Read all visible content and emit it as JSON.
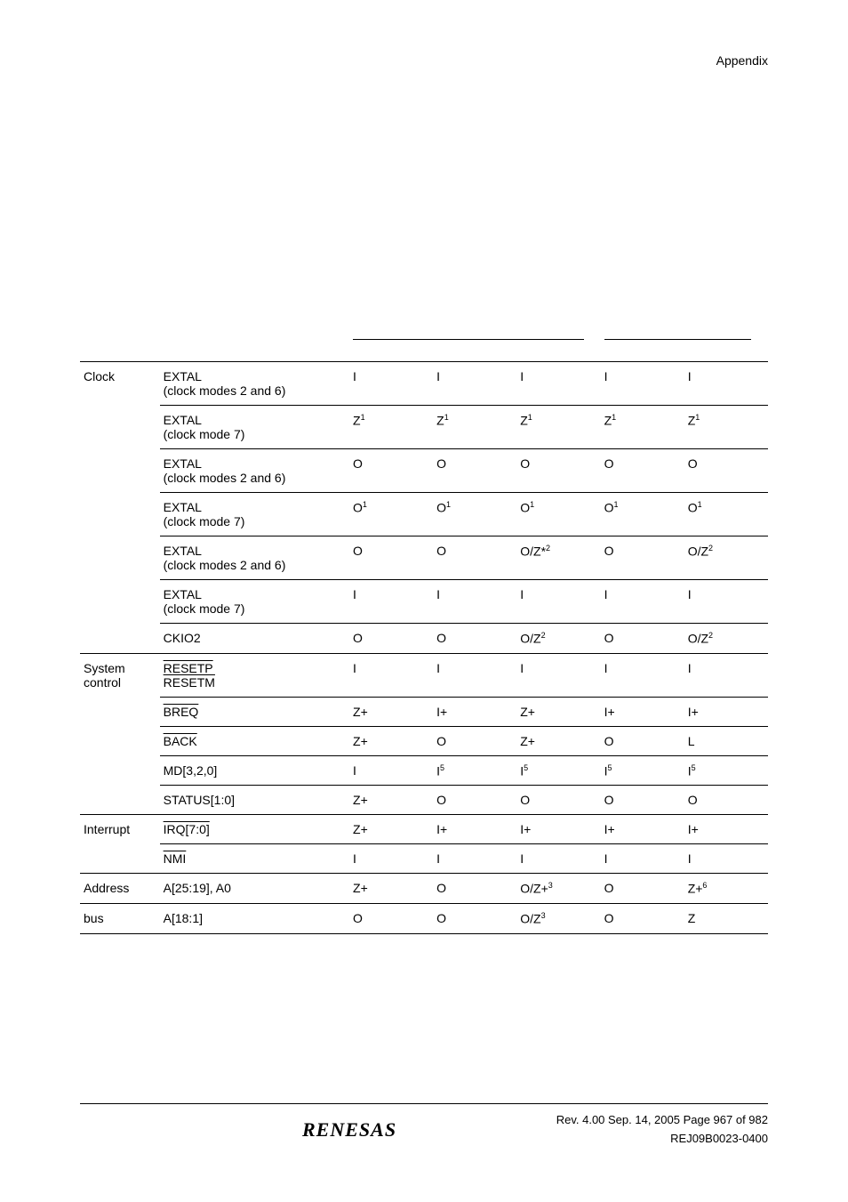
{
  "header": {
    "section": "Appendix"
  },
  "table": {
    "rows": [
      {
        "category": "Clock",
        "pin": "EXTAL",
        "sub": "(clock modes 2 and 6)",
        "c1": "I",
        "c2": "I",
        "c3": "I",
        "c4": "I",
        "c5": "I",
        "topBorder": true
      },
      {
        "category": "",
        "pin": "EXTAL",
        "sub": "(clock mode 7)",
        "c1": "Z",
        "s1": "1",
        "c2": "Z",
        "s2": "1",
        "c3": "Z",
        "s3": "1",
        "c4": "Z",
        "s4": "1",
        "c5": "Z",
        "s5": "1",
        "topBorder": true
      },
      {
        "category": "",
        "pin": "EXTAL",
        "sub": "(clock modes 2 and 6)",
        "c1": "O",
        "c2": "O",
        "c3": "O",
        "c4": "O",
        "c5": "O",
        "topBorder": true
      },
      {
        "category": "",
        "pin": "EXTAL",
        "sub": "(clock mode 7)",
        "c1": "O",
        "s1": "1",
        "c2": "O",
        "s2": "1",
        "c3": "O",
        "s3": "1",
        "c4": "O",
        "s4": "1",
        "c5": "O",
        "s5": "1",
        "topBorder": true
      },
      {
        "category": "",
        "pin": "EXTAL",
        "sub": "(clock modes 2 and 6)",
        "c1": "O",
        "c2": "O",
        "c3": "O/Z*",
        "s3": "2",
        "c4": "O",
        "c5": "O/Z",
        "s5": "2",
        "topBorder": true
      },
      {
        "category": "",
        "pin": "EXTAL",
        "sub": "(clock mode 7)",
        "c1": "I",
        "c2": "I",
        "c3": "I",
        "c4": "I",
        "c5": "I",
        "topBorder": true
      },
      {
        "category": "",
        "pin": "CKIO2",
        "c1": "O",
        "c2": "O",
        "c3": "O/Z",
        "s3": "2",
        "c4": "O",
        "c5": "O/Z",
        "s5": "2",
        "topBorder": true
      },
      {
        "category": "System control",
        "pin": "RESETP",
        "pinOverline": true,
        "pin2": "RESETM",
        "pin2Overline": true,
        "c1": "I",
        "c2": "I",
        "c3": "I",
        "c4": "I",
        "c5": "I",
        "topBorder": true
      },
      {
        "category": "",
        "pin": "BREQ",
        "pinOverline": true,
        "c1": "Z+",
        "c2": "I+",
        "c3": "Z+",
        "c4": "I+",
        "c5": "I+",
        "topBorder": true
      },
      {
        "category": "",
        "pin": "BACK",
        "pinOverline": true,
        "c1": "Z+",
        "c2": "O",
        "c3": "Z+",
        "c4": "O",
        "c5": "L",
        "topBorder": true
      },
      {
        "category": "",
        "pin": "MD[3,2,0]",
        "c1": "I",
        "c2": "I",
        "s2": "5",
        "c3": "I",
        "s3": "5",
        "c4": "I",
        "s4": "5",
        "c5": "I",
        "s5": "5",
        "topBorder": true
      },
      {
        "category": "",
        "pin": "STATUS[1:0]",
        "c1": "Z+",
        "c2": "O",
        "c3": "O",
        "c4": "O",
        "c5": "O",
        "topBorder": true
      },
      {
        "category": "Interrupt",
        "pin": "IRQ[7:0]",
        "pinOverline": true,
        "c1": "Z+",
        "c2": "I+",
        "c3": "I+",
        "c4": "I+",
        "c5": "I+",
        "topBorder": true
      },
      {
        "category": "",
        "pin": "NMI",
        "pinOverline": true,
        "c1": "I",
        "c2": "I",
        "c3": "I",
        "c4": "I",
        "c5": "I",
        "topBorder": true
      },
      {
        "category": "Address",
        "pin": "A[25:19], A0",
        "c1": "Z+",
        "c2": "O",
        "c3": "O/Z+",
        "s3": "3",
        "c4": "O",
        "c5": "Z+",
        "s5": "6",
        "topBorder": true
      },
      {
        "category": "bus",
        "pin": "A[18:1]",
        "c1": "O",
        "c2": "O",
        "c3": "O/Z",
        "s3": "3",
        "c4": "O",
        "c5": "Z",
        "topBorder": true,
        "bottomBorder": true
      }
    ]
  },
  "footer": {
    "logo": "RENESAS",
    "line1": "Rev. 4.00  Sep. 14, 2005  Page 967 of 982",
    "line2": "REJ09B0023-0400"
  }
}
